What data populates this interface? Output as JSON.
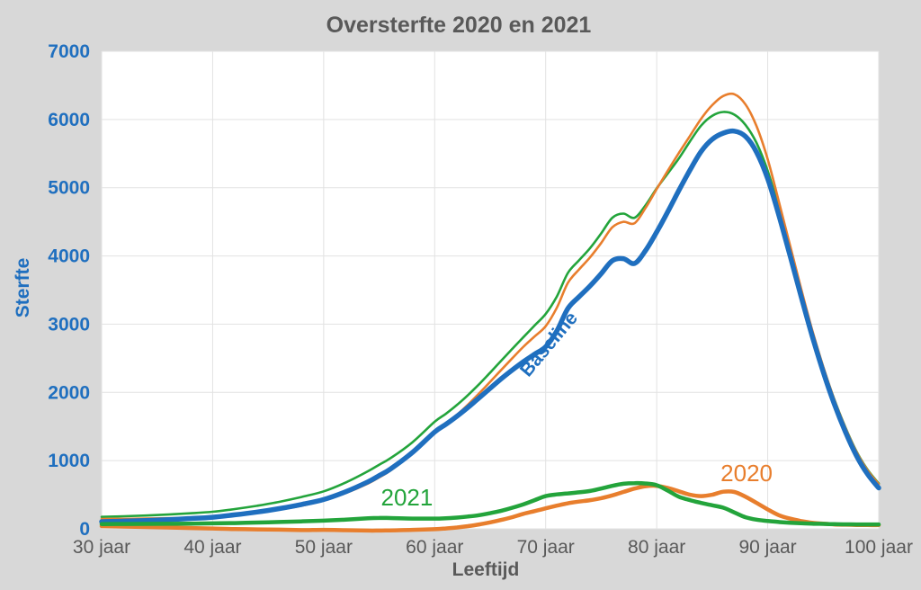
{
  "title": "Oversterfte 2020 en 2021",
  "x_axis": {
    "label": "Leeftijd",
    "tick_values": [
      30,
      40,
      50,
      60,
      70,
      80,
      90,
      100
    ],
    "tick_labels": [
      "30 jaar",
      "40 jaar",
      "50 jaar",
      "60 jaar",
      "70 jaar",
      "80 jaar",
      "90 jaar",
      "100 jaar"
    ]
  },
  "y_axis": {
    "label": "Sterfte",
    "tick_values": [
      0,
      1000,
      2000,
      3000,
      4000,
      5000,
      6000,
      7000
    ],
    "tick_labels": [
      "0",
      "1000",
      "2000",
      "3000",
      "4000",
      "5000",
      "6000",
      "7000"
    ]
  },
  "colors": {
    "background": "#D8D8D8",
    "plot_background": "#FFFFFF",
    "gridline": "#E2E2E2",
    "plot_border": "#D9D9D9",
    "title_text": "#595959",
    "x_tick_text": "#595959",
    "y_tick_text": "#1F6FBF",
    "blue": "#1F6FBF",
    "orange": "#E87E2D",
    "green": "#23A43B"
  },
  "chart_data": {
    "type": "line",
    "title": "Oversterfte 2020 en 2021",
    "xlabel": "Leeftijd",
    "ylabel": "Sterfte",
    "xlim": [
      30,
      100
    ],
    "ylim": [
      0,
      7000
    ],
    "grid": true,
    "legend": "none (inline curve labels)",
    "x": [
      30,
      32,
      34,
      36,
      38,
      40,
      42,
      44,
      46,
      48,
      50,
      52,
      54,
      55,
      56,
      58,
      60,
      61,
      62,
      63,
      64,
      65,
      66,
      67,
      68,
      69,
      70,
      71,
      72,
      73,
      74,
      75,
      76,
      77,
      78,
      79,
      80,
      81,
      82,
      83,
      84,
      85,
      86,
      87,
      88,
      89,
      90,
      91,
      92,
      93,
      94,
      95,
      96,
      97,
      98,
      99,
      100
    ],
    "series": [
      {
        "key": "total_2021",
        "label": "",
        "color": "#23A43B",
        "width": 2.6,
        "values": [
          175,
          184,
          195,
          210,
          228,
          250,
          290,
          338,
          396,
          467,
          550,
          680,
          845,
          940,
          1033,
          1270,
          1570,
          1685,
          1815,
          1960,
          2120,
          2290,
          2465,
          2640,
          2810,
          2980,
          3150,
          3405,
          3750,
          3935,
          4115,
          4330,
          4560,
          4620,
          4560,
          4745,
          4990,
          5210,
          5430,
          5680,
          5910,
          6055,
          6110,
          6070,
          5920,
          5655,
          5245,
          4700,
          4100,
          3492,
          2906,
          2372,
          1898,
          1486,
          1135,
          865,
          665
        ]
      },
      {
        "key": "total_2020",
        "label": "",
        "color": "#E87E2D",
        "width": 2.6,
        "values": [
          145,
          146,
          150,
          156,
          163,
          175,
          202,
          238,
          284,
          339,
          415,
          525,
          665,
          755,
          853,
          1105,
          1415,
          1535,
          1670,
          1820,
          1985,
          2155,
          2330,
          2502,
          2670,
          2820,
          2970,
          3240,
          3605,
          3800,
          3980,
          4190,
          4420,
          4500,
          4480,
          4705,
          4980,
          5250,
          5510,
          5760,
          6010,
          6210,
          6345,
          6370,
          6220,
          5900,
          5415,
          4800,
          4160,
          3525,
          2920,
          2375,
          1895,
          1480,
          1127,
          855,
          655
        ]
      },
      {
        "key": "baseline",
        "label": "Baseline",
        "color": "#1F6FBF",
        "width": 5.5,
        "values": [
          105,
          113,
          123,
          136,
          151,
          170,
          205,
          246,
          296,
          357,
          430,
          545,
          690,
          780,
          875,
          1120,
          1420,
          1530,
          1650,
          1780,
          1920,
          2060,
          2200,
          2330,
          2450,
          2560,
          2670,
          2900,
          3230,
          3400,
          3560,
          3740,
          3930,
          3960,
          3890,
          4080,
          4350,
          4650,
          4960,
          5260,
          5530,
          5710,
          5800,
          5830,
          5750,
          5520,
          5130,
          4600,
          4010,
          3410,
          2830,
          2300,
          1830,
          1420,
          1070,
          800,
          600
        ]
      },
      {
        "key": "excess_2020",
        "label": "2020",
        "color": "#E87E2D",
        "width": 4.5,
        "values": [
          40,
          33,
          27,
          20,
          12,
          5,
          -3,
          -8,
          -12,
          -18,
          -15,
          -20,
          -25,
          -25,
          -22,
          -15,
          -5,
          5,
          20,
          40,
          65,
          95,
          130,
          172,
          220,
          260,
          300,
          340,
          375,
          400,
          420,
          450,
          490,
          540,
          590,
          625,
          630,
          600,
          550,
          500,
          480,
          500,
          545,
          540,
          470,
          380,
          285,
          200,
          150,
          115,
          90,
          75,
          65,
          60,
          57,
          55,
          55
        ]
      },
      {
        "key": "excess_2021",
        "label": "2021",
        "color": "#23A43B",
        "width": 4.5,
        "values": [
          70,
          71,
          72,
          74,
          77,
          80,
          85,
          92,
          100,
          110,
          120,
          135,
          155,
          160,
          158,
          150,
          150,
          155,
          165,
          180,
          200,
          230,
          265,
          310,
          360,
          420,
          480,
          505,
          520,
          535,
          555,
          590,
          630,
          660,
          670,
          665,
          640,
          560,
          470,
          420,
          380,
          345,
          310,
          240,
          170,
          135,
          115,
          100,
          90,
          82,
          76,
          72,
          68,
          66,
          65,
          65,
          65
        ]
      }
    ],
    "annotations": [
      {
        "text": "Baseline",
        "x_age": 70.7,
        "y_value": 2650,
        "rotation": -50,
        "color": "#1F6FBF",
        "size": 21,
        "bold": true
      },
      {
        "text": "2021",
        "x_age": 57.5,
        "y_value": 340,
        "rotation": 0,
        "color": "#23A43B",
        "size": 26,
        "bold": false
      },
      {
        "text": "2020",
        "x_age": 88.1,
        "y_value": 700,
        "rotation": 0,
        "color": "#E87E2D",
        "size": 26,
        "bold": false
      }
    ]
  }
}
